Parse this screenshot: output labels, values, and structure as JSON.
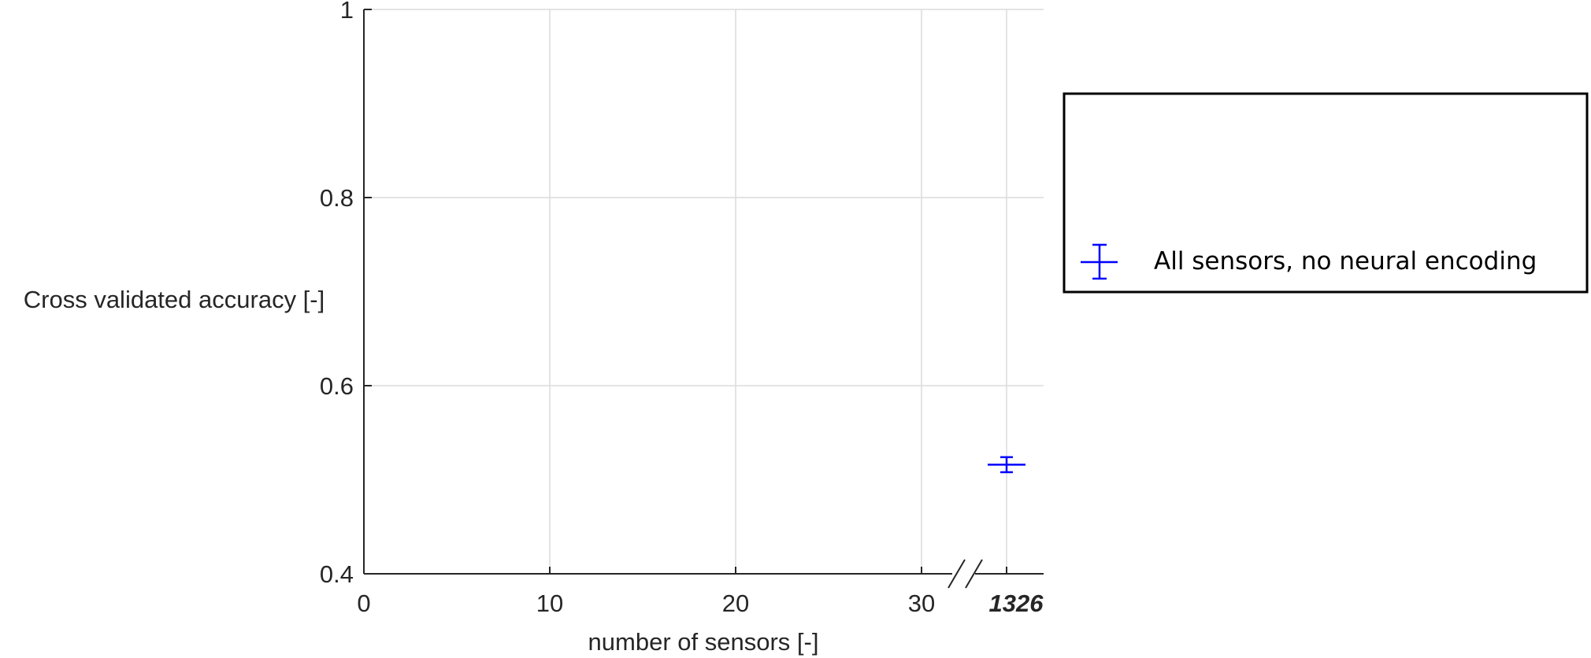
{
  "chart_data": {
    "type": "scatter",
    "title": "",
    "xlabel": "number of sensors [-]",
    "ylabel": "Cross validated accuracy [-]",
    "xlim": [
      0,
      37
    ],
    "ylim": [
      0.4,
      1
    ],
    "x_ticks": [
      0,
      10,
      20,
      30
    ],
    "x_tick_labels": [
      "0",
      "10",
      "20",
      "30"
    ],
    "y_ticks": [
      0.4,
      0.6,
      0.8,
      1
    ],
    "y_tick_labels": [
      "0.4",
      "0.6",
      "0.8",
      "1"
    ],
    "axis_break": {
      "after": 30,
      "label": "1326"
    },
    "grid": true,
    "legend_position": "outside right",
    "series": [
      {
        "name": "All sensors, no neural encoding",
        "color": "#0000ff",
        "marker": "errorbar",
        "points": [
          {
            "x": 1326,
            "y": 0.516,
            "err_low": 0.008,
            "err_high": 0.008
          }
        ]
      }
    ]
  }
}
